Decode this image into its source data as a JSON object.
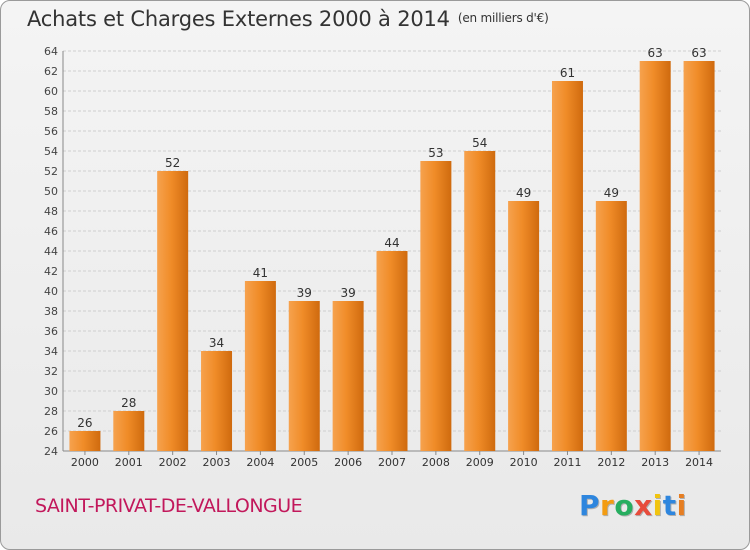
{
  "header": {
    "title": "Achats et Charges Externes 2000 à 2014",
    "unit": "(en milliers d'€)"
  },
  "footer": {
    "commune": "SAINT-PRIVAT-DE-VALLONGUE",
    "logo_text": "Proxiti",
    "logo_letters": [
      {
        "ch": "P",
        "color": "#2e86de"
      },
      {
        "ch": "r",
        "color": "#f39c12"
      },
      {
        "ch": "o",
        "color": "#27ae60"
      },
      {
        "ch": "x",
        "color": "#e74c3c"
      },
      {
        "ch": "i",
        "color": "#f1c40f"
      },
      {
        "ch": "t",
        "color": "#2e86de"
      },
      {
        "ch": "i",
        "color": "#e67e22"
      }
    ]
  },
  "chart_data": {
    "type": "bar",
    "title": "Achats et Charges Externes 2000 à 2014",
    "subtitle": "(en milliers d'€)",
    "xlabel": "",
    "ylabel": "",
    "categories": [
      "2000",
      "2001",
      "2002",
      "2003",
      "2004",
      "2005",
      "2006",
      "2007",
      "2008",
      "2009",
      "2010",
      "2011",
      "2012",
      "2013",
      "2014"
    ],
    "values": [
      26,
      28,
      52,
      34,
      41,
      39,
      39,
      44,
      53,
      54,
      49,
      61,
      49,
      63,
      63
    ],
    "ylim": [
      24,
      64
    ],
    "ytick_step": 2,
    "grid": true,
    "legend": "none",
    "bar_color": "#f08c28",
    "bar_color_light": "#f6a24e",
    "bar_color_dark": "#cf6a0e"
  }
}
